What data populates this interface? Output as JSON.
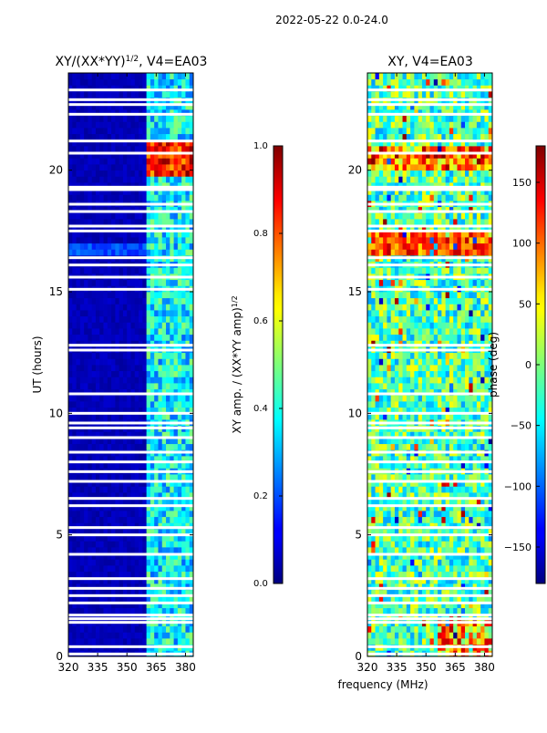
{
  "figure_title": "2022-05-22 0.0-24.0",
  "x_label_shared": "frequency (MHz)",
  "chart_data": [
    {
      "type": "heatmap",
      "title": "XY/(XX*YY)",
      "title_exponent": "1/2",
      "title_suffix": ", V4=EA03",
      "xlabel": "",
      "ylabel": "UT (hours)",
      "xlim": [
        320,
        384
      ],
      "ylim": [
        0,
        24
      ],
      "x_ticks": [
        320,
        335,
        350,
        365,
        380
      ],
      "y_ticks": [
        0,
        5,
        10,
        15,
        20
      ],
      "colorbar": {
        "label": "XY amp. / (XX*YY amp)",
        "label_exponent": "1/2",
        "range": [
          0.0,
          1.0
        ],
        "ticks": [
          "0.0",
          "0.2",
          "0.4",
          "0.6",
          "0.8",
          "1.0"
        ],
        "colormap": "jet"
      },
      "features": [
        {
          "desc": "low amplitude background",
          "value": 0.02
        },
        {
          "desc": "elevated amplitude band",
          "x_range": [
            361,
            384
          ],
          "value": 0.35
        },
        {
          "desc": "high amplitude block",
          "x_range": [
            361,
            384
          ],
          "y_range": [
            19.8,
            21.2
          ],
          "value": 0.85
        }
      ],
      "gaps_ut": [
        0.1,
        0.4,
        1.4,
        1.55,
        1.7,
        2.2,
        2.5,
        2.8,
        3.2,
        4.2,
        5.0,
        5.3,
        6.2,
        6.5,
        7.2,
        7.6,
        8.0,
        8.4,
        9.0,
        9.4,
        9.6,
        10.0,
        10.8,
        12.6,
        12.8,
        15.1,
        15.6,
        16.1,
        16.4,
        17.5,
        17.7,
        18.3,
        18.6,
        19.2,
        19.3,
        20.7,
        21.2,
        22.3,
        22.7,
        22.9,
        23.3
      ]
    },
    {
      "type": "heatmap",
      "title": "XY, V4=EA03",
      "xlabel": "frequency (MHz)",
      "ylabel": "",
      "xlim": [
        320,
        384
      ],
      "ylim": [
        0,
        24
      ],
      "x_ticks": [
        320,
        335,
        350,
        365,
        380
      ],
      "y_ticks": [
        0,
        5,
        10,
        15,
        20
      ],
      "colorbar": {
        "label": "phase (deg)",
        "range": [
          -180,
          180
        ],
        "ticks": [
          "150",
          "100",
          "50",
          "0",
          "−50",
          "−100",
          "−150"
        ],
        "tick_values": [
          150,
          100,
          50,
          0,
          -50,
          -100,
          -150
        ],
        "colormap": "jet"
      },
      "features": [
        {
          "desc": "noisy mid-range phase",
          "value": -20
        },
        {
          "desc": "high phase band",
          "y_range": [
            16.5,
            17.5
          ],
          "value": 120
        },
        {
          "desc": "phase block",
          "y_range": [
            20.0,
            21.0
          ],
          "value": 100
        }
      ],
      "gaps_ut": [
        0.1,
        0.4,
        1.4,
        1.55,
        1.7,
        2.2,
        2.5,
        2.8,
        3.2,
        4.2,
        5.0,
        5.3,
        6.2,
        6.5,
        7.2,
        7.6,
        8.0,
        8.4,
        9.0,
        9.4,
        9.6,
        10.0,
        10.8,
        12.6,
        12.8,
        15.1,
        15.6,
        16.1,
        16.4,
        17.5,
        17.7,
        18.3,
        18.6,
        19.2,
        19.3,
        20.7,
        21.2,
        22.3,
        22.7,
        22.9,
        23.3
      ]
    }
  ]
}
